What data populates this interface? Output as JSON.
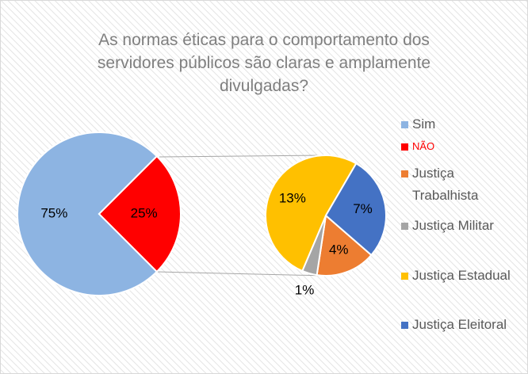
{
  "chart_data": {
    "type": "pie-of-pie",
    "title": "As normas éticas para o comportamento dos servidores públicos são claras e amplamente divulgadas?",
    "main": {
      "categories": [
        "Sim",
        "NÃO"
      ],
      "values": [
        75,
        25
      ],
      "value_labels": [
        "75%",
        "25%"
      ],
      "colors": [
        "#8db4e2",
        "#ff0000"
      ]
    },
    "secondary": {
      "categories": [
        "Justiça Trabalhista",
        "Justiça Militar",
        "Justiça Estadual",
        "Justiça Eleitoral"
      ],
      "values": [
        4,
        1,
        13,
        7
      ],
      "value_labels": [
        "4%",
        "1%",
        "13%",
        "7%"
      ],
      "colors": [
        "#ed7d31",
        "#a5a5a5",
        "#ffc000",
        "#4472c4"
      ]
    }
  }
}
